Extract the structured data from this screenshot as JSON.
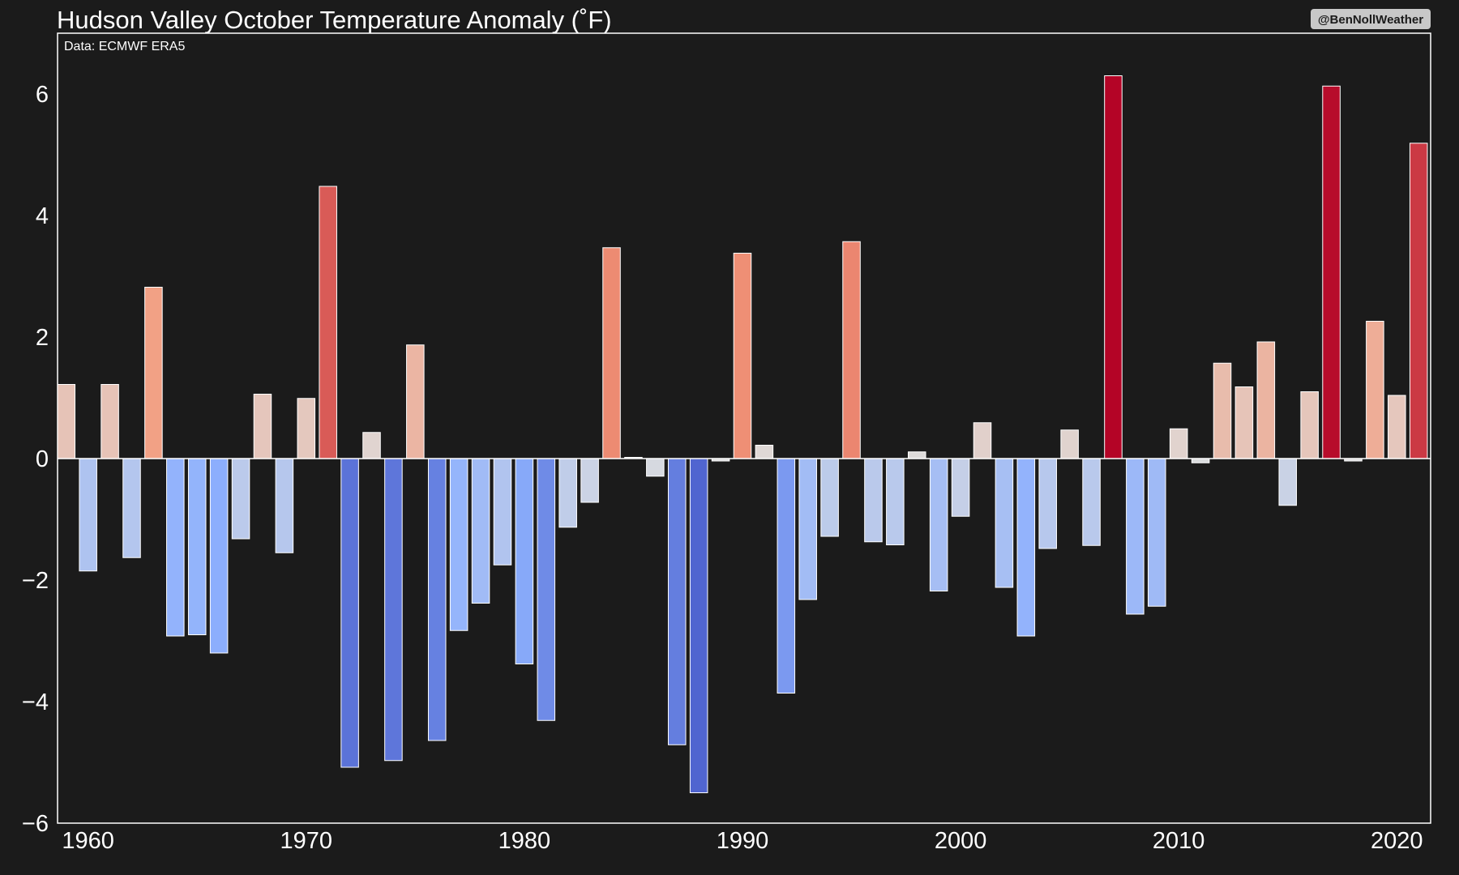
{
  "chart_data": {
    "type": "bar",
    "title": "Hudson Valley October Temperature Anomaly (˚F)",
    "source": "Data: ECMWF ERA5",
    "credit": "@BenNollWeather",
    "xlabel": "",
    "ylabel": "",
    "years": [
      1959,
      1960,
      1961,
      1962,
      1963,
      1964,
      1965,
      1966,
      1967,
      1968,
      1969,
      1970,
      1971,
      1972,
      1973,
      1974,
      1975,
      1976,
      1977,
      1978,
      1979,
      1980,
      1981,
      1982,
      1983,
      1984,
      1985,
      1986,
      1987,
      1988,
      1989,
      1990,
      1991,
      1992,
      1993,
      1994,
      1995,
      1996,
      1997,
      1998,
      1999,
      2000,
      2001,
      2002,
      2003,
      2004,
      2005,
      2006,
      2007,
      2008,
      2009,
      2010,
      2011,
      2012,
      2013,
      2014,
      2015,
      2016,
      2017,
      2018,
      2019,
      2020,
      2021
    ],
    "values": [
      1.22,
      -1.85,
      1.22,
      -1.63,
      2.82,
      -2.92,
      -2.9,
      -3.2,
      -1.32,
      1.06,
      -1.55,
      0.99,
      4.48,
      -5.08,
      0.43,
      -4.97,
      1.87,
      -4.64,
      -2.83,
      -2.38,
      -1.75,
      -3.38,
      -4.31,
      -1.13,
      -0.72,
      3.47,
      0.02,
      -0.29,
      -4.71,
      -5.5,
      -0.04,
      3.38,
      0.22,
      -3.86,
      -2.32,
      -1.28,
      3.57,
      -1.37,
      -1.42,
      0.11,
      -2.18,
      -0.95,
      0.59,
      -2.12,
      -2.92,
      -1.48,
      0.47,
      -1.43,
      6.3,
      -2.56,
      -2.43,
      0.49,
      -0.07,
      1.57,
      1.18,
      1.92,
      -0.77,
      1.1,
      6.13,
      -0.04,
      2.26,
      1.04,
      5.19
    ],
    "ylim": [
      -6,
      7
    ],
    "xlim": [
      1958.6,
      2021.55
    ],
    "x_ticks": [
      1960,
      1970,
      1980,
      1990,
      2000,
      2010,
      2020
    ],
    "x_tick_labels": [
      "1960",
      "1970",
      "1980",
      "1990",
      "2000",
      "2010",
      "2020"
    ],
    "y_ticks": [
      -6,
      -4,
      -2,
      0,
      2,
      4,
      6
    ],
    "y_tick_labels": [
      "−6",
      "−4",
      "−2",
      "0",
      "2",
      "4",
      "6"
    ],
    "grid": false,
    "legend": "none",
    "colormap": "coolwarm",
    "colors": {
      "background": "#1b1b1b",
      "axes": "#ffffff",
      "text": "#ffffff",
      "bar_edge": "#ffffff",
      "credit_box": "#c8c8c8"
    }
  }
}
